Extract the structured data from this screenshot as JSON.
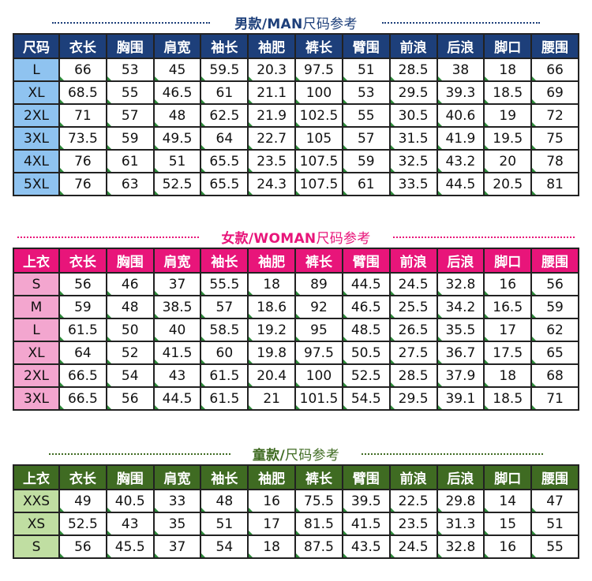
{
  "colors": {
    "men_header": "#1d3f7a",
    "men_size": "#8fc3f0",
    "men_title": "#1d3f7a",
    "women_header": "#e8157a",
    "women_size": "#f3a6cf",
    "women_title": "#e8157a",
    "kids_header": "#3f6b22",
    "kids_size": "#c0dea2",
    "kids_title": "#3f6b22"
  },
  "men": {
    "title_bold": "男款/MAN",
    "title_suffix": "尺码参考",
    "headers": [
      "尺码",
      "衣长",
      "胸围",
      "肩宽",
      "袖长",
      "袖肥",
      "裤长",
      "臂围",
      "前浪",
      "后浪",
      "脚口",
      "腰围"
    ],
    "rows": [
      [
        "L",
        "66",
        "53",
        "45",
        "59.5",
        "20.3",
        "97.5",
        "51",
        "28.5",
        "38",
        "18",
        "66"
      ],
      [
        "XL",
        "68.5",
        "55",
        "46.5",
        "61",
        "21.1",
        "100",
        "53",
        "29.5",
        "39.3",
        "18.5",
        "69"
      ],
      [
        "2XL",
        "71",
        "57",
        "48",
        "62.5",
        "21.9",
        "102.5",
        "55",
        "30.5",
        "40.6",
        "19",
        "72"
      ],
      [
        "3XL",
        "73.5",
        "59",
        "49.5",
        "64",
        "22.7",
        "105",
        "57",
        "31.5",
        "41.9",
        "19.5",
        "75"
      ],
      [
        "4XL",
        "76",
        "61",
        "51",
        "65.5",
        "23.5",
        "107.5",
        "59",
        "32.5",
        "43.2",
        "20",
        "78"
      ],
      [
        "5XL",
        "76",
        "63",
        "52.5",
        "65.5",
        "24.3",
        "107.5",
        "61",
        "33.5",
        "44.5",
        "20.5",
        "81"
      ]
    ]
  },
  "women": {
    "title_bold": "女款/WOMAN",
    "title_suffix": "尺码参考",
    "headers": [
      "上衣",
      "衣长",
      "胸围",
      "肩宽",
      "袖长",
      "袖肥",
      "裤长",
      "臂围",
      "前浪",
      "后浪",
      "脚口",
      "腰围"
    ],
    "rows": [
      [
        "S",
        "56",
        "46",
        "37",
        "55.5",
        "18",
        "89",
        "44.5",
        "24.5",
        "32.8",
        "16",
        "56"
      ],
      [
        "M",
        "59",
        "48",
        "38.5",
        "57",
        "18.6",
        "92",
        "46.5",
        "25.5",
        "34.2",
        "16.5",
        "59"
      ],
      [
        "L",
        "61.5",
        "50",
        "40",
        "58.5",
        "19.2",
        "95",
        "48.5",
        "26.5",
        "35.5",
        "17",
        "62"
      ],
      [
        "XL",
        "64",
        "52",
        "41.5",
        "60",
        "19.8",
        "97.5",
        "50.5",
        "27.5",
        "36.7",
        "17.5",
        "65"
      ],
      [
        "2XL",
        "66.5",
        "54",
        "43",
        "61.5",
        "20.4",
        "100",
        "52.5",
        "28.5",
        "37.9",
        "18",
        "68"
      ],
      [
        "3XL",
        "66.5",
        "56",
        "44.5",
        "61.5",
        "21",
        "101.5",
        "54.5",
        "29.5",
        "39.1",
        "18.5",
        "71"
      ]
    ]
  },
  "kids": {
    "title_bold": "童款/",
    "title_suffix": "尺码参考",
    "headers": [
      "上衣",
      "衣长",
      "胸围",
      "肩宽",
      "袖长",
      "袖肥",
      "裤长",
      "臂围",
      "前浪",
      "后浪",
      "脚口",
      "腰围"
    ],
    "rows": [
      [
        "XXS",
        "49",
        "40.5",
        "33",
        "48",
        "16",
        "75.5",
        "39.5",
        "22.5",
        "29.8",
        "14",
        "47"
      ],
      [
        "XS",
        "52.5",
        "43",
        "35",
        "51",
        "17",
        "81.5",
        "41.5",
        "23.5",
        "31.3",
        "15",
        "51"
      ],
      [
        "S",
        "56",
        "45.5",
        "37",
        "54",
        "18",
        "87.5",
        "43.5",
        "24.5",
        "32.8",
        "16",
        "55"
      ]
    ]
  }
}
